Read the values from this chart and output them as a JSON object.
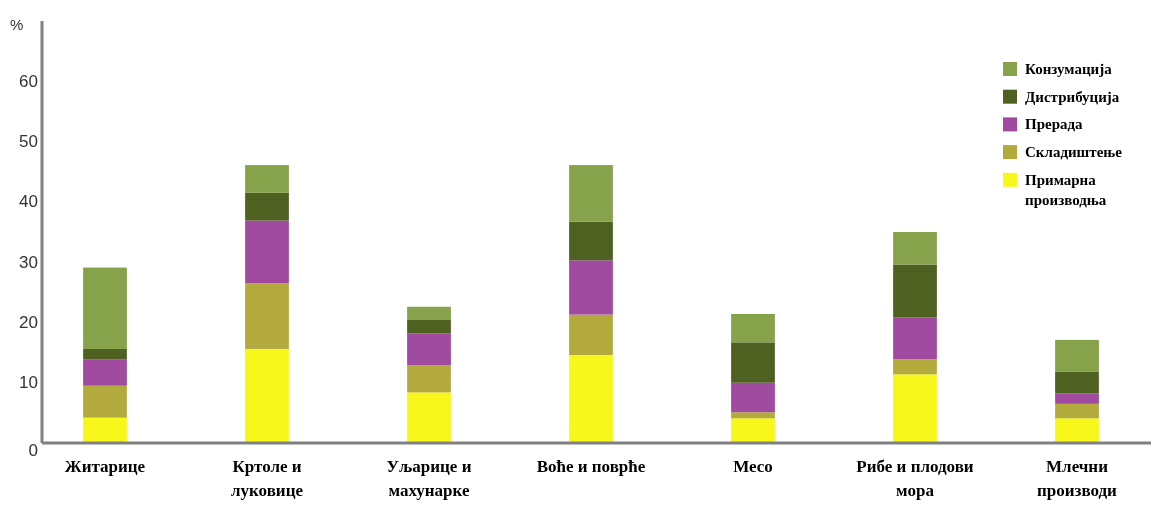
{
  "chart_data": {
    "type": "bar",
    "stacked": true,
    "ylabel": "%",
    "categories": [
      "Житарице",
      "Кртоле и луковице",
      "Уљарице и махунарке",
      "Воће и поврће",
      "Месо",
      "Рибе и плодови мора",
      "Млечни производи"
    ],
    "series": [
      {
        "name": "Примарна производња",
        "color": "#f7f71c",
        "values": [
          4.2,
          15.6,
          8.4,
          14.6,
          4.1,
          11.4,
          4.1
        ]
      },
      {
        "name": "Складиштење",
        "color": "#b3aa3e",
        "values": [
          5.3,
          10.9,
          4.5,
          6.7,
          1.0,
          2.5,
          2.4
        ]
      },
      {
        "name": "Прерада",
        "color": "#a04aa0",
        "values": [
          4.4,
          10.4,
          5.3,
          9.0,
          4.9,
          6.9,
          1.7
        ]
      },
      {
        "name": "Дистрибуција",
        "color": "#4e6121",
        "values": [
          1.7,
          4.6,
          2.2,
          6.4,
          6.7,
          8.8,
          3.6
        ]
      },
      {
        "name": "Конзумација",
        "color": "#86a24a",
        "values": [
          13.5,
          4.6,
          2.2,
          9.4,
          4.7,
          5.4,
          5.3
        ]
      }
    ],
    "ylim": [
      0,
      70
    ],
    "yticks": [
      0,
      10,
      20,
      30,
      40,
      50,
      60
    ],
    "grid": false,
    "legend": "top right"
  }
}
